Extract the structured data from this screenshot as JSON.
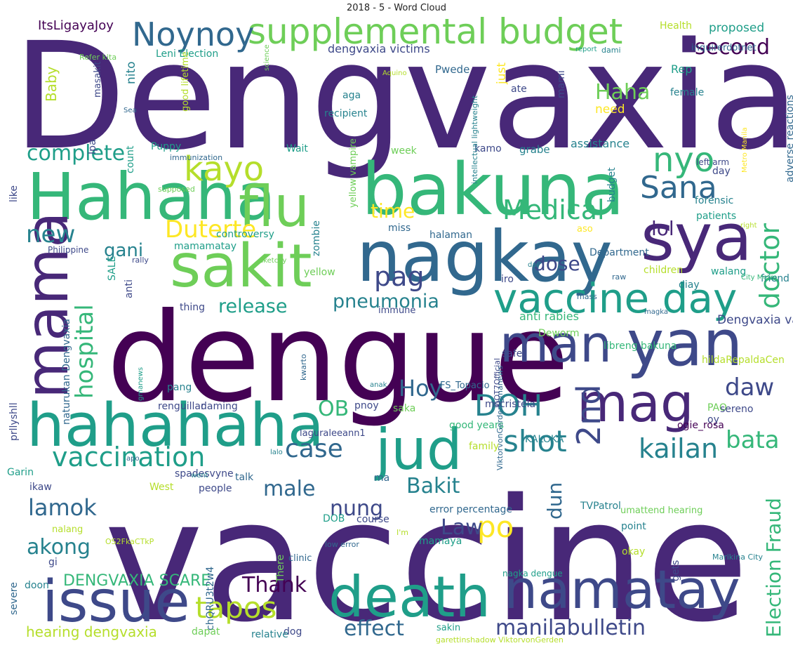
{
  "title": "2018 - 5 - Word Cloud",
  "palette": {
    "d1": "#440154",
    "d2": "#482878",
    "d3": "#3e4989",
    "d4": "#31688e",
    "d5": "#26828e",
    "d6": "#1f9e89",
    "d7": "#35b779",
    "d8": "#6ece58",
    "d9": "#b5de2b",
    "d10": "#fde725"
  },
  "words": [
    {
      "text": "Dengvaxia",
      "c": "d2"
    },
    {
      "text": "vaccine",
      "c": "d2"
    },
    {
      "text": "dengue",
      "c": "d1"
    },
    {
      "text": "bakuna",
      "c": "d7"
    },
    {
      "text": "nagkay",
      "c": "d4"
    },
    {
      "text": "sya",
      "c": "d2"
    },
    {
      "text": "Hahaha",
      "c": "d7"
    },
    {
      "text": "flu",
      "c": "d8"
    },
    {
      "text": "sakit",
      "c": "d8"
    },
    {
      "text": "mama",
      "c": "d2"
    },
    {
      "text": "yan",
      "c": "d3"
    },
    {
      "text": "man",
      "c": "d3"
    },
    {
      "text": "mag",
      "c": "d2"
    },
    {
      "text": "hahahaha",
      "c": "d6"
    },
    {
      "text": "jud",
      "c": "d6"
    },
    {
      "text": "issue",
      "c": "d3"
    },
    {
      "text": "death",
      "c": "d6"
    },
    {
      "text": "namatay",
      "c": "d3"
    },
    {
      "text": "vaccine day",
      "c": "d6"
    },
    {
      "text": "supplemental budget",
      "c": "d8"
    },
    {
      "text": "Noynoy",
      "c": "d4"
    },
    {
      "text": "kayo",
      "c": "d9"
    },
    {
      "text": "nyo",
      "c": "d7"
    },
    {
      "text": "Sana",
      "c": "d4"
    },
    {
      "text": "Medical",
      "c": "d7"
    },
    {
      "text": "doctor",
      "c": "d7"
    },
    {
      "text": "Duterte",
      "c": "d10"
    },
    {
      "text": "new",
      "c": "d5"
    },
    {
      "text": "hospital",
      "c": "d7"
    },
    {
      "text": "complete",
      "c": "d6"
    },
    {
      "text": "second",
      "c": "d1"
    },
    {
      "text": "Haha",
      "c": "d8"
    },
    {
      "text": "lol",
      "c": "d2"
    },
    {
      "text": "time",
      "c": "d10"
    },
    {
      "text": "pag",
      "c": "d3"
    },
    {
      "text": "dose",
      "c": "d3"
    },
    {
      "text": "gani",
      "c": "d5"
    },
    {
      "text": "pneumonia",
      "c": "d5"
    },
    {
      "text": "release",
      "c": "d6"
    },
    {
      "text": "DOH",
      "c": "d5"
    },
    {
      "text": "daw",
      "c": "d3"
    },
    {
      "text": "2nd",
      "c": "d3"
    },
    {
      "text": "shot",
      "c": "d5"
    },
    {
      "text": "kailan",
      "c": "d5"
    },
    {
      "text": "case",
      "c": "d4"
    },
    {
      "text": "Hoy",
      "c": "d4"
    },
    {
      "text": "vaccination",
      "c": "d6"
    },
    {
      "text": "OB",
      "c": "d7"
    },
    {
      "text": "Bakit",
      "c": "d5"
    },
    {
      "text": "bata",
      "c": "d7"
    },
    {
      "text": "lamok",
      "c": "d4"
    },
    {
      "text": "male",
      "c": "d4"
    },
    {
      "text": "nung",
      "c": "d3"
    },
    {
      "text": "po",
      "c": "d10"
    },
    {
      "text": "Law",
      "c": "d3"
    },
    {
      "text": "dun",
      "c": "d4"
    },
    {
      "text": "akong",
      "c": "d5"
    },
    {
      "text": "Election Fraud",
      "c": "d7"
    },
    {
      "text": "DENGVAXIA SCARE",
      "c": "d7"
    },
    {
      "text": "Thank",
      "c": "d1"
    },
    {
      "text": "tapos",
      "c": "d9"
    },
    {
      "text": "effect",
      "c": "d4"
    },
    {
      "text": "manilabulletin",
      "c": "d3"
    },
    {
      "text": "hearing dengvaxia",
      "c": "d9"
    },
    {
      "text": "ItsLigayaJoy",
      "c": "d1"
    },
    {
      "text": "proposed",
      "c": "d6"
    },
    {
      "text": "Health",
      "c": "d9"
    },
    {
      "text": "dengvaxia victims",
      "c": "d3"
    },
    {
      "text": "Leni Election",
      "c": "d6"
    },
    {
      "text": "Rep",
      "c": "d6"
    },
    {
      "text": "Pwede",
      "c": "d4"
    },
    {
      "text": "female",
      "c": "d5"
    },
    {
      "text": "need",
      "c": "d10"
    },
    {
      "text": "recipient",
      "c": "d5"
    },
    {
      "text": "aga",
      "c": "d5"
    },
    {
      "text": "mami",
      "c": "d3"
    },
    {
      "text": "Baby",
      "c": "d9"
    },
    {
      "text": "masakit",
      "c": "d3"
    },
    {
      "text": "nito",
      "c": "d5"
    },
    {
      "text": "just",
      "c": "d10"
    },
    {
      "text": "ate",
      "c": "d3"
    },
    {
      "text": "good lifetime",
      "c": "d9"
    },
    {
      "text": "Puppy",
      "c": "d6"
    },
    {
      "text": "Ipa",
      "c": "d3"
    },
    {
      "text": "Wait",
      "c": "d6"
    },
    {
      "text": "week",
      "c": "d8"
    },
    {
      "text": "kamo",
      "c": "d3"
    },
    {
      "text": "grabe",
      "c": "d5"
    },
    {
      "text": "assistance",
      "c": "d5"
    },
    {
      "text": "adverse reactions",
      "c": "d4"
    },
    {
      "text": "count",
      "c": "d6"
    },
    {
      "text": "like",
      "c": "d3"
    },
    {
      "text": "yellow vampire",
      "c": "d8"
    },
    {
      "text": "intellectual lightweight",
      "c": "d5"
    },
    {
      "text": "budget",
      "c": "d5"
    },
    {
      "text": "left arm",
      "c": "d3"
    },
    {
      "text": "day",
      "c": "d3"
    },
    {
      "text": "forensic",
      "c": "d5"
    },
    {
      "text": "patients",
      "c": "d6"
    },
    {
      "text": "miss",
      "c": "d4"
    },
    {
      "text": "halaman",
      "c": "d4"
    },
    {
      "text": "controversy",
      "c": "d6"
    },
    {
      "text": "zombie",
      "c": "d5"
    },
    {
      "text": "aso",
      "c": "d10"
    },
    {
      "text": "Department",
      "c": "d4"
    },
    {
      "text": "mamamatay",
      "c": "d6"
    },
    {
      "text": "Philippine",
      "c": "d3"
    },
    {
      "text": "SALE",
      "c": "d6"
    },
    {
      "text": "anti",
      "c": "d3"
    },
    {
      "text": "yellow",
      "c": "d8"
    },
    {
      "text": "iro",
      "c": "d3"
    },
    {
      "text": "children",
      "c": "d9"
    },
    {
      "text": "walang",
      "c": "d6"
    },
    {
      "text": "friend",
      "c": "d5"
    },
    {
      "text": "diay",
      "c": "d5"
    },
    {
      "text": "thing",
      "c": "d3"
    },
    {
      "text": "immune",
      "c": "d3"
    },
    {
      "text": "anti rabies",
      "c": "d7"
    },
    {
      "text": "Dengvaxia vaccinees",
      "c": "d3"
    },
    {
      "text": "Deworm",
      "c": "d8"
    },
    {
      "text": "prllyshll",
      "c": "d3"
    },
    {
      "text": "naturukan Dengvaxia",
      "c": "d4"
    },
    {
      "text": "libreng bakuna",
      "c": "d7"
    },
    {
      "text": "safe",
      "c": "d3"
    },
    {
      "text": "hildaRepaldaCen",
      "c": "d9"
    },
    {
      "text": "pang",
      "c": "d5"
    },
    {
      "text": "renguillar",
      "c": "d3"
    },
    {
      "text": "daming",
      "c": "d3"
    },
    {
      "text": "FS_Topacio",
      "c": "d4"
    },
    {
      "text": "PAO",
      "c": "d8"
    },
    {
      "text": "mscristela",
      "c": "d3"
    },
    {
      "text": "pnoy",
      "c": "d3"
    },
    {
      "text": "saka",
      "c": "d8"
    },
    {
      "text": "sereno",
      "c": "d3"
    },
    {
      "text": "oy",
      "c": "d3"
    },
    {
      "text": "good years",
      "c": "d7"
    },
    {
      "text": "ogie_rosa",
      "c": "d1"
    },
    {
      "text": "laguraleeann1",
      "c": "d3"
    },
    {
      "text": "KALOKA",
      "c": "d5"
    },
    {
      "text": "family",
      "c": "d9"
    },
    {
      "text": "Garin",
      "c": "d6"
    },
    {
      "text": "spadesvyne",
      "c": "d3"
    },
    {
      "text": "talk",
      "c": "d4"
    },
    {
      "text": "ikaw",
      "c": "d3"
    },
    {
      "text": "West",
      "c": "d9"
    },
    {
      "text": "ma",
      "c": "d4"
    },
    {
      "text": "people",
      "c": "d3"
    },
    {
      "text": "There",
      "c": "d8"
    },
    {
      "text": "error percentage",
      "c": "d4"
    },
    {
      "text": "TVPatrol",
      "c": "d5"
    },
    {
      "text": "gets",
      "c": "d3"
    },
    {
      "text": "umattend hearing",
      "c": "d8"
    },
    {
      "text": "DOB",
      "c": "d6"
    },
    {
      "text": "course",
      "c": "d3"
    },
    {
      "text": "point",
      "c": "d5"
    },
    {
      "text": "okay",
      "c": "d9"
    },
    {
      "text": "nalang",
      "c": "d9"
    },
    {
      "text": "mamaya",
      "c": "d6"
    },
    {
      "text": "clinic",
      "c": "d4"
    },
    {
      "text": "gi",
      "c": "d3"
    },
    {
      "text": "doon",
      "c": "d5"
    },
    {
      "text": "severe",
      "c": "d4"
    },
    {
      "text": "chQRU3t2w4",
      "c": "d4"
    },
    {
      "text": "dapat",
      "c": "d8"
    },
    {
      "text": "dog",
      "c": "d3"
    },
    {
      "text": "sakin",
      "c": "d6"
    },
    {
      "text": "relative",
      "c": "d5"
    },
    {
      "text": "low error",
      "c": "d4"
    },
    {
      "text": "Marikina City",
      "c": "d5"
    },
    {
      "text": "nagka dengue",
      "c": "d6"
    },
    {
      "text": "garettinshadow ViktorvonGerden",
      "c": "d9"
    },
    {
      "text": "Refer kita",
      "c": "d8"
    },
    {
      "text": "science",
      "c": "d8"
    },
    {
      "text": "Aquino",
      "c": "d9"
    },
    {
      "text": "report",
      "c": "d6"
    },
    {
      "text": "dami",
      "c": "d5"
    },
    {
      "text": "inquirerdotnet",
      "c": "d4"
    },
    {
      "text": "Sea",
      "c": "d4"
    },
    {
      "text": "immunization",
      "c": "d4"
    },
    {
      "text": "supposed",
      "c": "d8"
    },
    {
      "text": "Metro Manila",
      "c": "d10"
    },
    {
      "text": "right",
      "c": "d9"
    },
    {
      "text": "rally",
      "c": "d3"
    },
    {
      "text": "sketchy",
      "c": "d8"
    },
    {
      "text": "dai",
      "c": "d5"
    },
    {
      "text": "raw",
      "c": "d4"
    },
    {
      "text": "City Metro",
      "c": "d7"
    },
    {
      "text": "mass",
      "c": "d4"
    },
    {
      "text": "magka",
      "c": "d4"
    },
    {
      "text": "kwarto",
      "c": "d4"
    },
    {
      "text": "ViktorvonGerden gmanews",
      "c": "d4"
    },
    {
      "text": "GOT7Official",
      "c": "d3"
    },
    {
      "text": "gmanews",
      "c": "d6"
    },
    {
      "text": "anak",
      "c": "d5"
    },
    {
      "text": "apo",
      "c": "d4"
    },
    {
      "text": "lalo",
      "c": "d5"
    },
    {
      "text": "went",
      "c": "d5"
    },
    {
      "text": "OS2FkaCTkP",
      "c": "d9"
    },
    {
      "text": "I'm",
      "c": "d9"
    },
    {
      "text": "doubt",
      "c": "d9"
    }
  ]
}
